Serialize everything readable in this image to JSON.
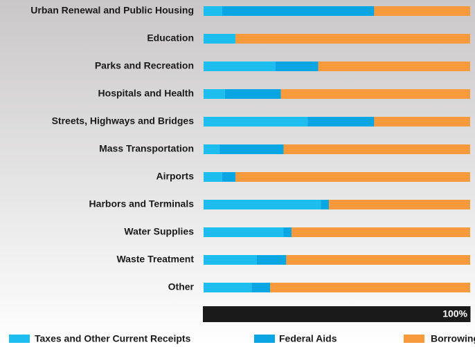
{
  "chart_data": {
    "type": "stacked-bar-horizontal",
    "categories": [
      "Urban Renewal and Public Housing",
      "Education",
      "Parks and Recreation",
      "Hospitals and Health",
      "Streets, Highways and Bridges",
      "Mass Transportation",
      "Airports",
      "Harbors and Terminals",
      "Water Supplies",
      "Waste Treatment",
      "Other"
    ],
    "series": [
      {
        "name": "Taxes and Other Current Receipts",
        "color": "#1ebdf0",
        "values": [
          7,
          12,
          27,
          8,
          39,
          6,
          7,
          44,
          30,
          20,
          18
        ]
      },
      {
        "name": "Federal Aids",
        "color": "#0aa6e4",
        "values": [
          57,
          0,
          16,
          21,
          25,
          24,
          5,
          3,
          3,
          11,
          7
        ]
      },
      {
        "name": "Borrowing",
        "color": "#f79a3b",
        "values": [
          36,
          88,
          57,
          71,
          36,
          70,
          88,
          53,
          67,
          69,
          75
        ]
      }
    ],
    "xlim": [
      0,
      100
    ],
    "xticks": [
      {
        "value": 100,
        "label": "100%"
      }
    ],
    "legend": "bottom"
  }
}
